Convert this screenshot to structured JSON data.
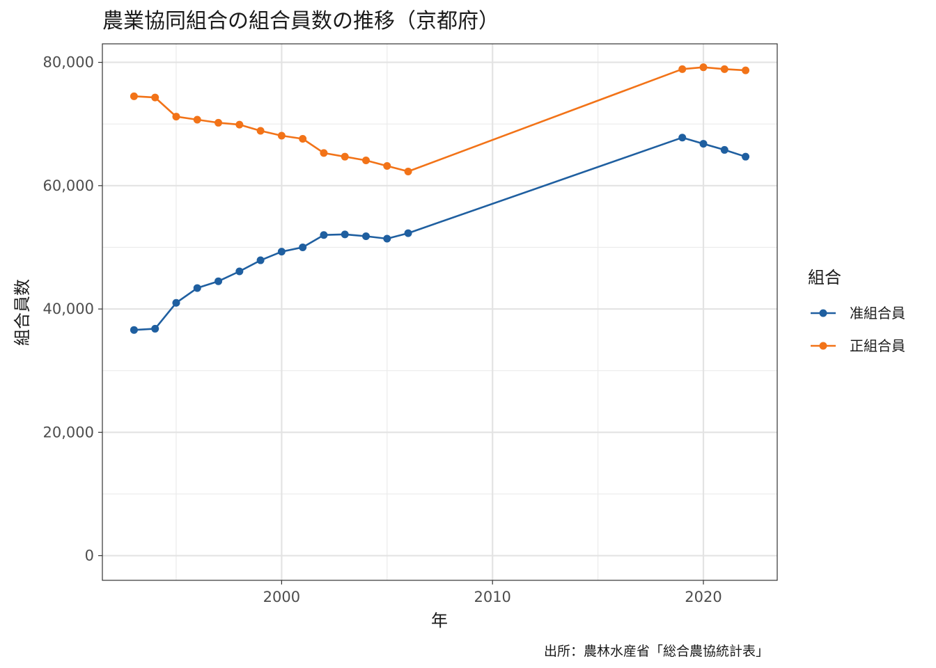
{
  "chart_data": {
    "type": "line",
    "title": "農業協同組合の組合員数の推移（京都府）",
    "xlabel": "年",
    "ylabel": "組合員数",
    "caption": "出所：農林水産省「総合農協統計表」",
    "legend_title": "組合",
    "legend_position": "right",
    "grid": true,
    "xlim": [
      1991.5,
      2023.5
    ],
    "ylim": [
      -4000,
      83000
    ],
    "x_ticks": [
      2000,
      2010,
      2020
    ],
    "x_tick_labels": [
      "2000",
      "2010",
      "2020"
    ],
    "y_ticks": [
      0,
      20000,
      40000,
      60000,
      80000
    ],
    "y_tick_labels": [
      "0",
      "20,000",
      "40,000",
      "60,000",
      "80,000"
    ],
    "x": [
      1993,
      1994,
      1995,
      1996,
      1997,
      1998,
      1999,
      2000,
      2001,
      2002,
      2003,
      2004,
      2005,
      2006,
      2019,
      2020,
      2021,
      2022
    ],
    "series": [
      {
        "name": "准組合員",
        "color": "#1f5fa0",
        "values": [
          36600,
          36800,
          41000,
          43400,
          44500,
          46100,
          47900,
          49300,
          50000,
          52000,
          52100,
          51800,
          51400,
          52300,
          67800,
          66800,
          65800,
          64700
        ]
      },
      {
        "name": "正組合員",
        "color": "#f27318",
        "values": [
          74500,
          74300,
          71200,
          70700,
          70200,
          69900,
          68900,
          68100,
          67600,
          65300,
          64700,
          64100,
          63200,
          62300,
          78900,
          79200,
          78900,
          78700
        ]
      }
    ]
  }
}
